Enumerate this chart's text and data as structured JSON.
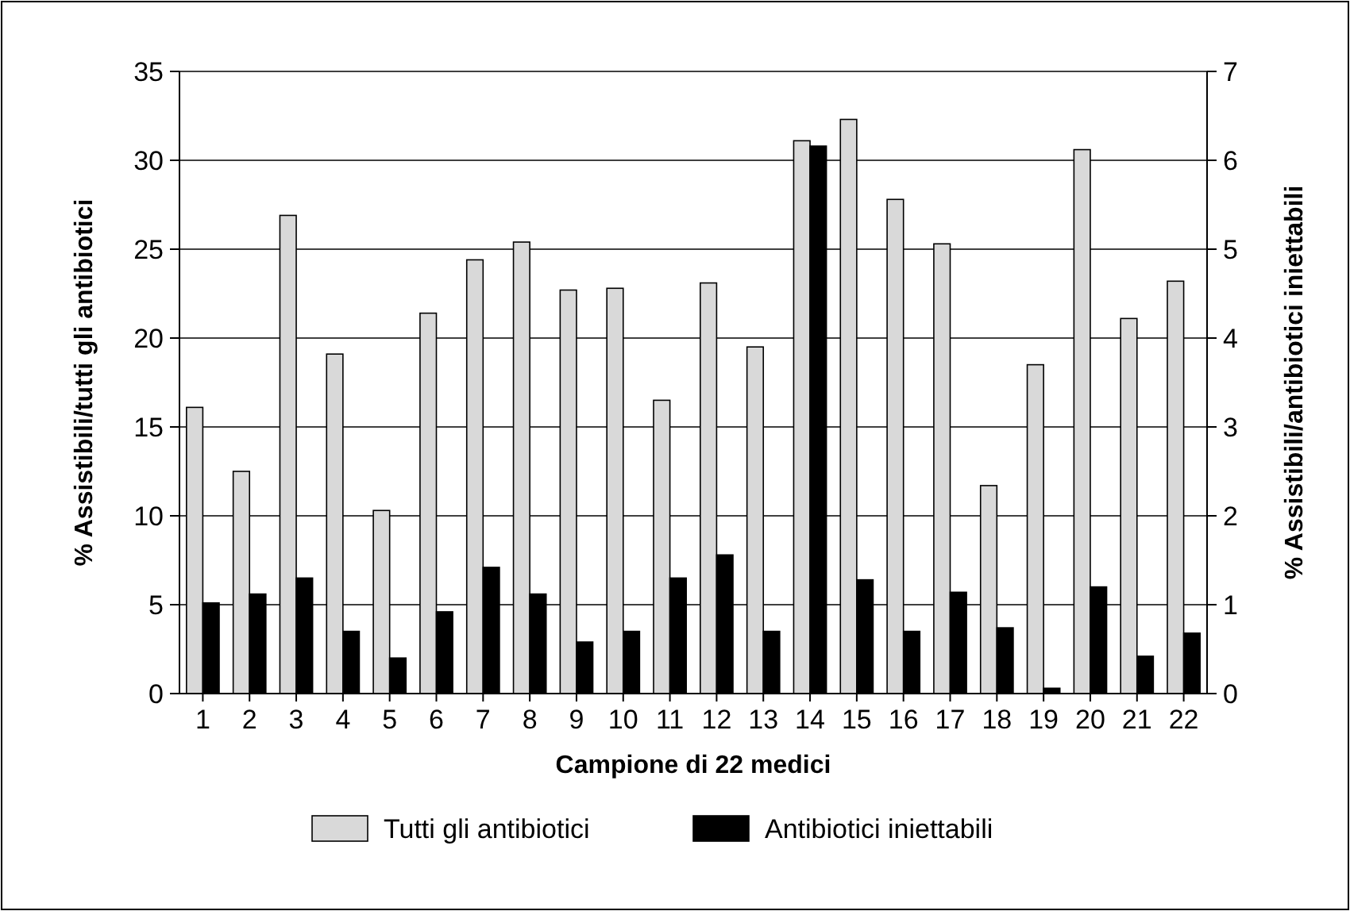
{
  "chart_data": {
    "type": "bar",
    "xlabel": "Campione di 22 medici",
    "ylabel": "% Assistibili/tutti gli antibiotici",
    "y2label": "% Assistibili/antibiotici iniettabili",
    "categories": [
      "1",
      "2",
      "3",
      "4",
      "5",
      "6",
      "7",
      "8",
      "9",
      "10",
      "11",
      "12",
      "13",
      "14",
      "15",
      "16",
      "17",
      "18",
      "19",
      "20",
      "21",
      "22"
    ],
    "series": [
      {
        "name": "Tutti gli antibiotici",
        "color": "#d9d9d9",
        "values": [
          16.1,
          12.5,
          26.9,
          19.1,
          10.3,
          21.4,
          24.4,
          25.4,
          22.7,
          22.8,
          16.5,
          23.1,
          19.5,
          31.1,
          32.3,
          27.8,
          25.3,
          11.7,
          18.5,
          30.6,
          21.1,
          23.2
        ]
      },
      {
        "name": "Antibiotici iniettabili",
        "color": "#000000",
        "axis": "y2",
        "values": [
          1.02,
          1.12,
          1.3,
          0.7,
          0.4,
          0.92,
          1.42,
          1.12,
          0.58,
          0.7,
          1.3,
          1.56,
          0.7,
          6.16,
          1.28,
          0.7,
          1.14,
          0.74,
          0.06,
          1.2,
          0.42,
          0.68
        ]
      }
    ],
    "ylim": [
      0,
      35
    ],
    "yticks": [
      0,
      5,
      10,
      15,
      20,
      25,
      30,
      35
    ],
    "y2lim": [
      0,
      7
    ],
    "y2ticks": [
      0,
      1,
      2,
      3,
      4,
      5,
      6,
      7
    ],
    "grid": "y",
    "legend": "bottom"
  }
}
